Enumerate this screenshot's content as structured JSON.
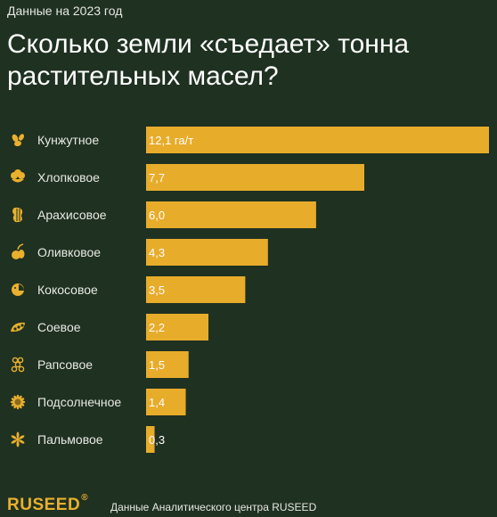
{
  "header": {
    "subtitle": "Данные на 2023 год",
    "title_line1": "Сколько земли «съедает» тонна",
    "title_line2": "растительных масел?"
  },
  "footer": {
    "logo": "RUSEED",
    "logo_mark": "®",
    "source": "Данные Аналитического центра RUSEED"
  },
  "colors": {
    "background": "#1f3121",
    "bar": "#e8ac2b",
    "icon": "#eab02e"
  },
  "chart_data": {
    "type": "bar",
    "orientation": "horizontal",
    "unit": "га/т",
    "categories": [
      "Кунжутное",
      "Хлопковое",
      "Арахисовое",
      "Оливковое",
      "Кокосовое",
      "Соевое",
      "Рапсовое",
      "Подсолнечное",
      "Пальмовое"
    ],
    "icons": [
      "sesame-icon",
      "cotton-icon",
      "peanut-icon",
      "olive-icon",
      "coconut-icon",
      "soy-icon",
      "rapeseed-icon",
      "sunflower-icon",
      "palm-icon"
    ],
    "values": [
      12.1,
      7.7,
      6.0,
      4.3,
      3.5,
      2.2,
      1.5,
      1.4,
      0.3
    ],
    "value_labels": [
      "12,1 га/т",
      "7,7",
      "6,0",
      "4,3",
      "3,5",
      "2,2",
      "1,5",
      "1,4",
      "0,3"
    ],
    "xlim": [
      0,
      12.1
    ],
    "grid": false,
    "legend": "none"
  }
}
